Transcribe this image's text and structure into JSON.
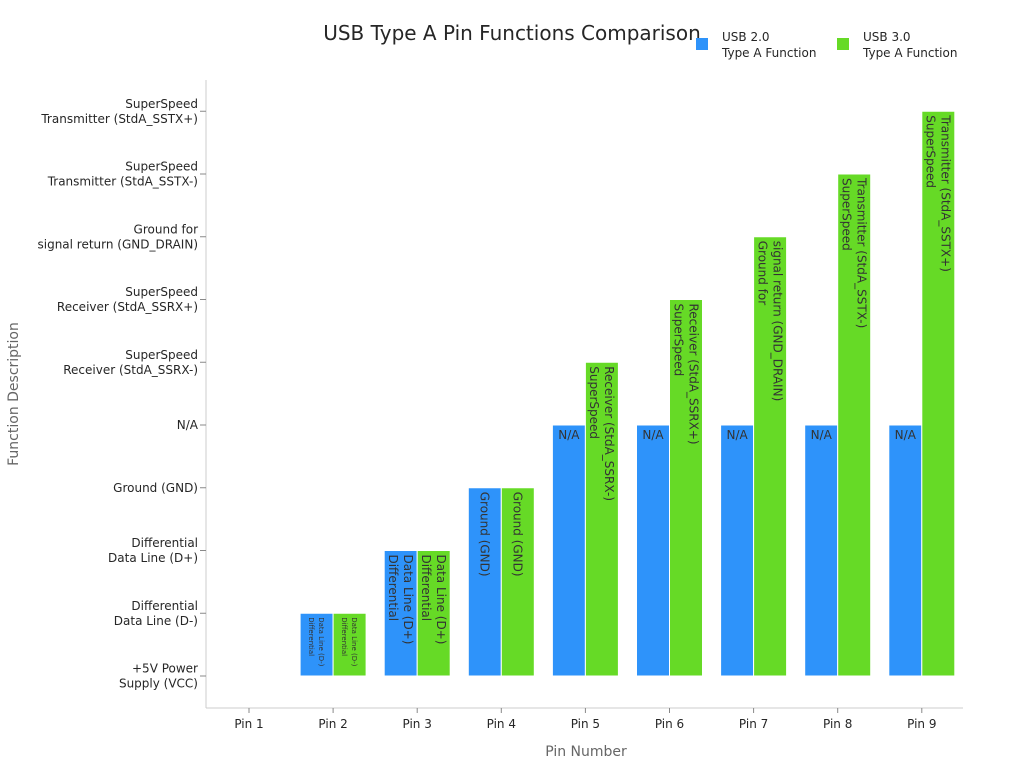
{
  "chart_data": {
    "type": "bar",
    "title": "USB Type A Pin Functions Comparison",
    "xlabel": "Pin Number",
    "ylabel": "Function Description",
    "categories": [
      "Pin 1",
      "Pin 2",
      "Pin 3",
      "Pin 4",
      "Pin 5",
      "Pin 6",
      "Pin 7",
      "Pin 8",
      "Pin 9"
    ],
    "y_categories": [
      "+5V Power\nSupply (VCC)",
      "Differential\nData Line (D-)",
      "Differential\nData Line (D+)",
      "Ground (GND)",
      "N/A",
      "SuperSpeed\nReceiver (StdA_SSRX-)",
      "SuperSpeed\nReceiver (StdA_SSRX+)",
      "Ground for\nsignal return (GND_DRAIN)",
      "SuperSpeed\nTransmitter (StdA_SSTX-)",
      "SuperSpeed\nTransmitter (StdA_SSTX+)"
    ],
    "series": [
      {
        "name": "USB 2.0\nType A Function",
        "color": "#2e93fa",
        "values": [
          0,
          1,
          2,
          3,
          4,
          4,
          4,
          4,
          4
        ],
        "labels": [
          "+5V Power\nSupply (VCC)",
          "Differential\nData Line (D-)",
          "Differential\nData Line (D+)",
          "Ground (GND)",
          "N/A",
          "N/A",
          "N/A",
          "N/A",
          "N/A"
        ]
      },
      {
        "name": "USB 3.0\nType A Function",
        "color": "#66da26",
        "values": [
          0,
          1,
          2,
          3,
          5,
          6,
          7,
          8,
          9
        ],
        "labels": [
          "+5V Power\nSupply (VCC)",
          "Differential\nData Line (D-)",
          "Differential\nData Line (D+)",
          "Ground (GND)",
          "SuperSpeed\nReceiver (StdA_SSRX-)",
          "SuperSpeed\nReceiver (StdA_SSRX+)",
          "Ground for\nsignal return (GND_DRAIN)",
          "SuperSpeed\nTransmitter (StdA_SSTX-)",
          "SuperSpeed\nTransmitter (StdA_SSTX+)"
        ]
      }
    ],
    "legend_position": "top-right",
    "grid": false
  }
}
